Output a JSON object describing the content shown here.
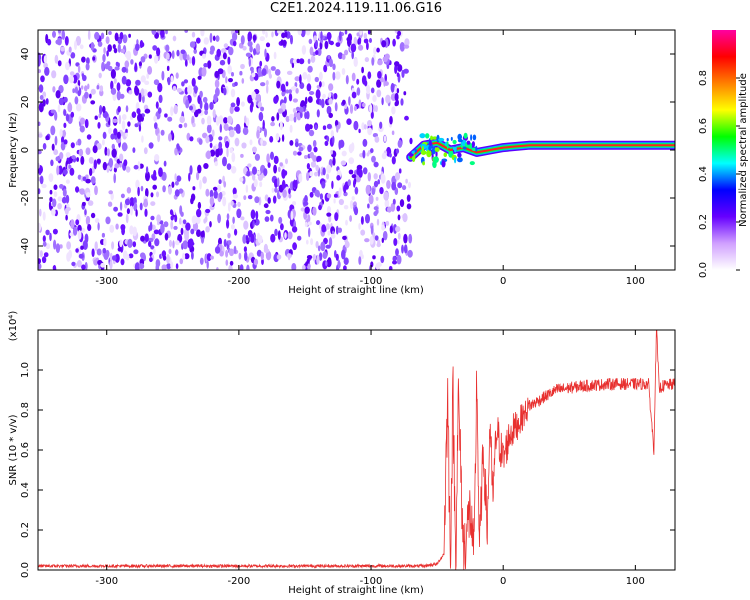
{
  "title": "C2E1.2024.119.11.06.G16",
  "chart_data": [
    {
      "type": "heatmap",
      "xlabel": "Height of straight line (km)",
      "ylabel": "Frequency (Hz)",
      "xlim": [
        -352,
        130
      ],
      "ylim": [
        -50,
        50
      ],
      "x_ticks": [
        -300,
        -200,
        -100,
        0,
        100
      ],
      "x_tick_labels": [
        "-300",
        "-200",
        "-100",
        "0",
        "100"
      ],
      "y_ticks": [
        -40,
        -20,
        0,
        20,
        40
      ],
      "y_tick_labels": [
        "-40",
        "-20",
        "0",
        "20",
        "40"
      ],
      "colorbar": {
        "label": "Normalized spectral amplitude",
        "range": [
          0,
          1
        ],
        "ticks": [
          0.0,
          0.2,
          0.4,
          0.6,
          0.8
        ],
        "tick_labels": [
          "0.0",
          "0.2",
          "0.4",
          "0.6",
          "0.8"
        ],
        "colors": [
          "#ffffff",
          "#d0a0ff",
          "#6600ff",
          "#0000ff",
          "#00ffff",
          "#00ff00",
          "#ffff00",
          "#ff8000",
          "#ff0000",
          "#ff00a0"
        ]
      },
      "noise_region_x": [
        -352,
        -70
      ],
      "signal": {
        "x": [
          -70,
          -60,
          -50,
          -40,
          -30,
          -20,
          -10,
          0,
          20,
          40,
          60,
          80,
          90,
          100,
          110,
          115,
          120,
          130
        ],
        "freq": [
          -3,
          2,
          3,
          0,
          1,
          -1,
          0,
          1,
          2,
          2,
          2,
          2,
          2,
          2,
          2,
          2,
          2,
          2
        ]
      }
    },
    {
      "type": "line",
      "xlabel": "Height of straight line (km)",
      "ylabel": "SNR (10 * v/v)",
      "y_multiplier": "(x10⁴)",
      "xlim": [
        -352,
        130
      ],
      "ylim": [
        0,
        1.2
      ],
      "x_ticks": [
        -300,
        -200,
        -100,
        0,
        100
      ],
      "x_tick_labels": [
        "-300",
        "-200",
        "-100",
        "0",
        "100"
      ],
      "y_ticks": [
        0.0,
        0.2,
        0.4,
        0.6,
        0.8,
        1.0
      ],
      "y_tick_labels": [
        "0.0",
        "0.2",
        "0.4",
        "0.6",
        "0.8",
        "1.0"
      ],
      "color": "#e8302f",
      "series": [
        {
          "x": [
            -352,
            -300,
            -250,
            -200,
            -150,
            -100,
            -60,
            -50,
            -45,
            -42,
            -40,
            -38,
            -36,
            -34,
            -30,
            -25,
            -22,
            -20,
            -18,
            -15,
            -12,
            -10,
            -8,
            -5,
            0,
            5,
            10,
            15,
            20,
            30,
            40,
            60,
            80,
            100,
            110,
            114,
            116,
            118,
            120,
            130
          ],
          "y": [
            0.02,
            0.02,
            0.02,
            0.02,
            0.02,
            0.02,
            0.02,
            0.03,
            0.08,
            0.87,
            0.08,
            0.88,
            0.05,
            0.86,
            0.1,
            0.3,
            0.05,
            0.98,
            0.1,
            0.6,
            0.2,
            0.75,
            0.35,
            0.7,
            0.55,
            0.68,
            0.72,
            0.77,
            0.82,
            0.86,
            0.9,
            0.92,
            0.93,
            0.93,
            0.93,
            0.6,
            1.22,
            0.9,
            0.92,
            0.93
          ]
        }
      ]
    }
  ]
}
